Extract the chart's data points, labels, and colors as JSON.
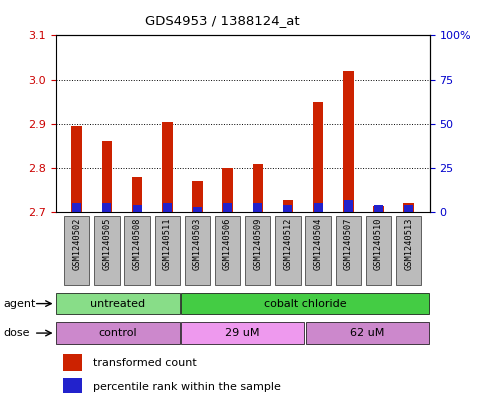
{
  "title": "GDS4953 / 1388124_at",
  "samples": [
    "GSM1240502",
    "GSM1240505",
    "GSM1240508",
    "GSM1240511",
    "GSM1240503",
    "GSM1240506",
    "GSM1240509",
    "GSM1240512",
    "GSM1240504",
    "GSM1240507",
    "GSM1240510",
    "GSM1240513"
  ],
  "transformed_count": [
    2.895,
    2.86,
    2.78,
    2.905,
    2.77,
    2.8,
    2.81,
    2.728,
    2.95,
    3.02,
    2.715,
    2.72
  ],
  "percentile_rank": [
    5,
    5,
    4,
    5,
    3,
    5,
    5,
    4,
    5,
    7,
    4,
    4
  ],
  "ylim_left": [
    2.7,
    3.1
  ],
  "ylim_right": [
    0,
    100
  ],
  "yticks_left": [
    2.7,
    2.8,
    2.9,
    3.0,
    3.1
  ],
  "yticks_right": [
    0,
    25,
    50,
    75,
    100
  ],
  "ytick_labels_right": [
    "0",
    "25",
    "50",
    "75",
    "100%"
  ],
  "bar_color_red": "#cc2200",
  "bar_color_blue": "#2222cc",
  "color_untreated": "#88dd88",
  "color_cobalt": "#44cc44",
  "color_control": "#cc88cc",
  "color_29uM": "#ee99ee",
  "color_62uM": "#cc88cc",
  "legend_red": "transformed count",
  "legend_blue": "percentile rank within the sample",
  "bar_width": 0.35,
  "label_color_left": "#cc0000",
  "label_color_right": "#0000cc",
  "tick_bg_color": "#bbbbbb"
}
